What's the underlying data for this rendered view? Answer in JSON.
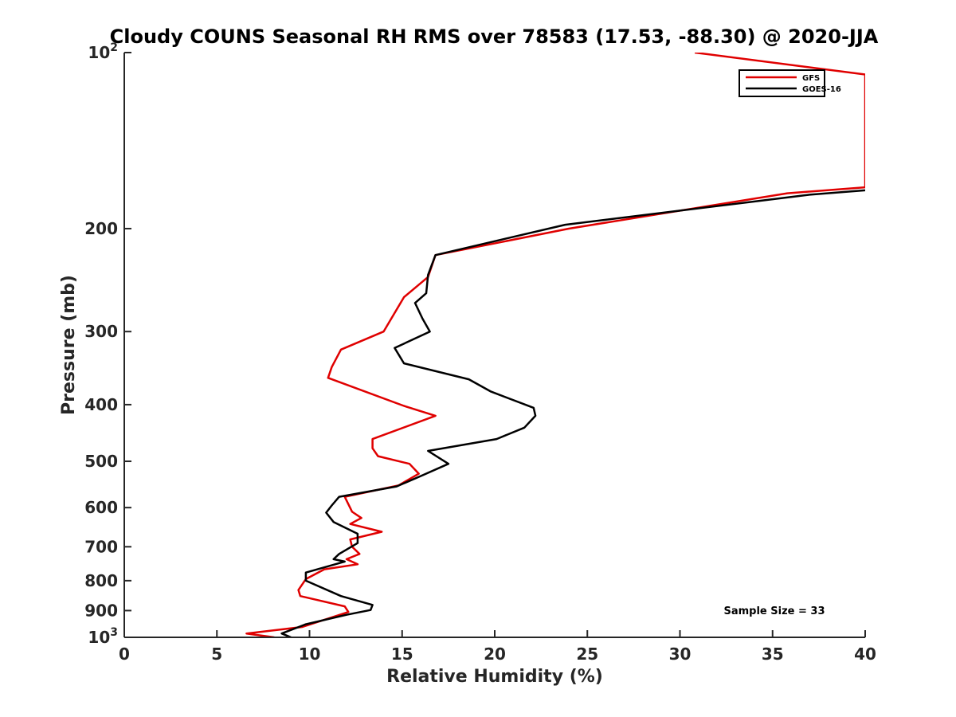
{
  "chart_data": {
    "type": "line",
    "title": "Cloudy COUNS Seasonal RH RMS over 78583 (17.53, -88.30) @ 2020-JJA",
    "xlabel": "Relative Humidity (%)",
    "ylabel": "Pressure (mb)",
    "xlim": [
      0,
      40
    ],
    "ylim": [
      1000,
      100
    ],
    "y_scale": "log",
    "y_reversed": true,
    "xticks": [
      0,
      5,
      10,
      15,
      20,
      25,
      30,
      35,
      40
    ],
    "yticks": [
      {
        "value": 100,
        "base": "10",
        "exp": "2"
      },
      {
        "value": 200,
        "label": "200"
      },
      {
        "value": 300,
        "label": "300"
      },
      {
        "value": 400,
        "label": "400"
      },
      {
        "value": 500,
        "label": "500"
      },
      {
        "value": 600,
        "label": "600"
      },
      {
        "value": 700,
        "label": "700"
      },
      {
        "value": 800,
        "label": "800"
      },
      {
        "value": 900,
        "label": "900"
      },
      {
        "value": 1000,
        "base": "10",
        "exp": "3"
      }
    ],
    "legend_position": "top-right",
    "grid": false,
    "annotation": "Sample Size = 33",
    "series": [
      {
        "name": "GFS",
        "color": "#e00000",
        "points": [
          [
            30.8,
            100
          ],
          [
            40,
            109
          ],
          [
            40,
            170
          ],
          [
            35.8,
            174
          ],
          [
            24,
            200
          ],
          [
            16.8,
            222
          ],
          [
            16.4,
            242
          ],
          [
            15.1,
            262
          ],
          [
            14.0,
            300
          ],
          [
            11.7,
            322
          ],
          [
            11.2,
            345
          ],
          [
            11.0,
            360
          ],
          [
            15.1,
            402
          ],
          [
            16.8,
            418
          ],
          [
            13.4,
            458
          ],
          [
            13.4,
            475
          ],
          [
            13.7,
            490
          ],
          [
            15.4,
            505
          ],
          [
            15.9,
            525
          ],
          [
            14.8,
            550
          ],
          [
            11.9,
            575
          ],
          [
            12.3,
            610
          ],
          [
            12.8,
            625
          ],
          [
            12.2,
            640
          ],
          [
            13.9,
            660
          ],
          [
            12.2,
            680
          ],
          [
            12.3,
            700
          ],
          [
            12.7,
            720
          ],
          [
            12.0,
            735
          ],
          [
            12.6,
            750
          ],
          [
            10.8,
            765
          ],
          [
            9.8,
            795
          ],
          [
            9.4,
            830
          ],
          [
            9.5,
            850
          ],
          [
            11.9,
            885
          ],
          [
            12.1,
            905
          ],
          [
            9.6,
            960
          ],
          [
            6.6,
            985
          ],
          [
            8.1,
            1000
          ]
        ]
      },
      {
        "name": "GOES-16",
        "color": "#000000",
        "points": [
          [
            40,
            172
          ],
          [
            37,
            175
          ],
          [
            23.8,
            197
          ],
          [
            16.8,
            222
          ],
          [
            16.4,
            240
          ],
          [
            16.3,
            258
          ],
          [
            15.7,
            268
          ],
          [
            16.1,
            285
          ],
          [
            16.5,
            300
          ],
          [
            14.6,
            320
          ],
          [
            15.1,
            340
          ],
          [
            18.6,
            362
          ],
          [
            19.8,
            380
          ],
          [
            22.1,
            405
          ],
          [
            22.2,
            418
          ],
          [
            21.6,
            438
          ],
          [
            20.1,
            458
          ],
          [
            16.4,
            480
          ],
          [
            17.5,
            505
          ],
          [
            16.0,
            530
          ],
          [
            14.7,
            552
          ],
          [
            11.6,
            575
          ],
          [
            11.2,
            595
          ],
          [
            10.9,
            612
          ],
          [
            11.3,
            635
          ],
          [
            12.6,
            665
          ],
          [
            12.6,
            690
          ],
          [
            11.6,
            720
          ],
          [
            11.3,
            735
          ],
          [
            11.9,
            742
          ],
          [
            9.8,
            775
          ],
          [
            9.8,
            800
          ],
          [
            11.7,
            850
          ],
          [
            13.4,
            880
          ],
          [
            13.3,
            898
          ],
          [
            12.0,
            915
          ],
          [
            9.8,
            950
          ],
          [
            8.5,
            985
          ],
          [
            9.0,
            1000
          ]
        ]
      }
    ]
  }
}
